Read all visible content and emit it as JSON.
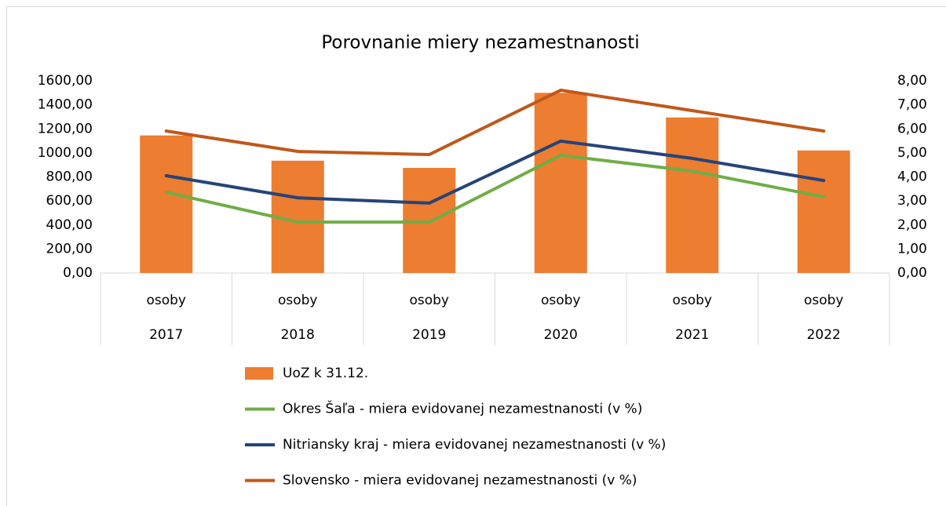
{
  "chart_data": {
    "type": "bar-line",
    "title": "Porovnanie miery nezamestnanosti",
    "categories": [
      "2017",
      "2018",
      "2019",
      "2020",
      "2021",
      "2022"
    ],
    "sublabels": [
      "osoby",
      "osoby",
      "osoby",
      "osoby",
      "osoby",
      "osoby"
    ],
    "series": [
      {
        "name": "UoZ k 31.12.",
        "type": "bar",
        "color": "#ed7d31",
        "axis": "y",
        "values": [
          1145,
          935,
          875,
          1500,
          1295,
          1020
        ]
      },
      {
        "name": "Okres Šaľa - miera evidovanej nezamestnanosti (v %)",
        "type": "line",
        "color": "#70ad47",
        "axis": "y2",
        "values": [
          3.36,
          2.12,
          2.12,
          4.9,
          4.24,
          3.17
        ]
      },
      {
        "name": "Nitriansky kraj - miera evidovanej nezamestnanosti (v %)",
        "type": "line",
        "color": "#264478",
        "axis": "y2",
        "values": [
          4.05,
          3.13,
          2.91,
          5.49,
          4.77,
          3.85
        ]
      },
      {
        "name": "Slovensko - miera evidovanej nezamestnanosti (v %)",
        "type": "line",
        "color": "#c0581a",
        "axis": "y2",
        "values": [
          5.91,
          5.06,
          4.93,
          7.61,
          6.76,
          5.91
        ]
      }
    ],
    "ylim": [
      0,
      1600
    ],
    "yticks": [
      {
        "value": 0,
        "label": "0,00"
      },
      {
        "value": 200,
        "label": "200,00"
      },
      {
        "value": 400,
        "label": "400,00"
      },
      {
        "value": 600,
        "label": "600,00"
      },
      {
        "value": 800,
        "label": "800,00"
      },
      {
        "value": 1000,
        "label": "1000,00"
      },
      {
        "value": 1200,
        "label": "1200,00"
      },
      {
        "value": 1400,
        "label": "1400,00"
      },
      {
        "value": 1600,
        "label": "1600,00"
      }
    ],
    "y2lim": [
      0,
      8
    ],
    "y2ticks": [
      {
        "value": 0,
        "label": "0,00"
      },
      {
        "value": 1,
        "label": "1,00"
      },
      {
        "value": 2,
        "label": "2,00"
      },
      {
        "value": 3,
        "label": "3,00"
      },
      {
        "value": 4,
        "label": "4,00"
      },
      {
        "value": 5,
        "label": "5,00"
      },
      {
        "value": 6,
        "label": "6,00"
      },
      {
        "value": 7,
        "label": "7,00"
      },
      {
        "value": 8,
        "label": "8,00"
      }
    ],
    "legend": "bottom"
  }
}
